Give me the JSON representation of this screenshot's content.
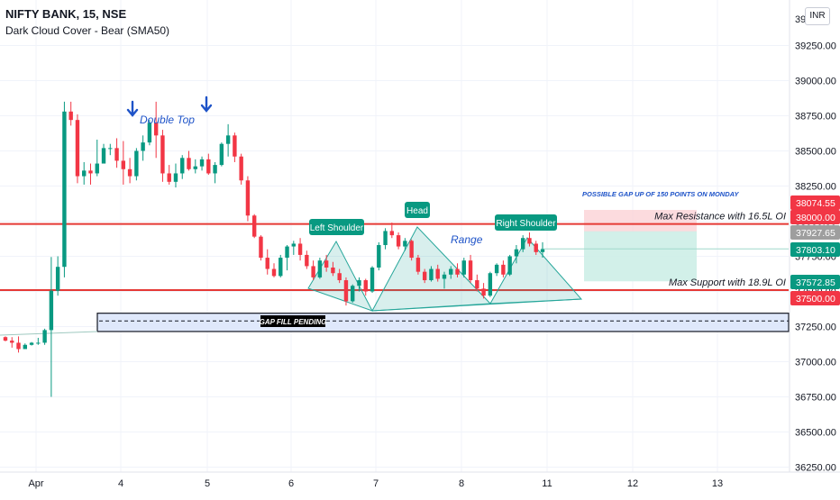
{
  "header": {
    "title": "NIFTY BANK, 15, NSE",
    "indicator": "Dark Cloud Cover - Bear (SMA50)",
    "currency": "INR"
  },
  "chart_data": {
    "type": "candlestick",
    "title": "NIFTY BANK, 15, NSE",
    "yaxis": {
      "ticks": [
        36250,
        36500,
        36750,
        37000,
        37250,
        37500,
        37750,
        38000,
        38250,
        38500,
        38750,
        39000,
        39250
      ],
      "top_partial_label": "39",
      "range": [
        36200,
        39550
      ],
      "side": "right"
    },
    "xaxis": {
      "labels": [
        "Apr",
        "4",
        "5",
        "6",
        "7",
        "8",
        "11",
        "12",
        "13"
      ]
    },
    "grid": true,
    "colors": {
      "up": "#089981",
      "down": "#f23645",
      "level": "#e53935",
      "gap_band": "#dfe8fb",
      "annotation": "#1e53c8",
      "pattern": "#26a69a"
    },
    "price_tags": [
      {
        "value": 38074.55,
        "label": "38074.55",
        "color": "#f23645"
      },
      {
        "value": 38000.0,
        "label": "38000.00",
        "color": "#f23645"
      },
      {
        "value": 37927.65,
        "label": "37927.65",
        "color": "#9e9e9e"
      },
      {
        "value": 37803.1,
        "label": "37803.10",
        "color": "#089981"
      },
      {
        "value": 37572.85,
        "label": "37572.85",
        "color": "#089981"
      },
      {
        "value": 37500.0,
        "label": "37500.00",
        "color": "#f23645"
      }
    ],
    "levels": [
      {
        "value": 37980,
        "label": "Max Resistance with 16.5L OI"
      },
      {
        "value": 37510,
        "label": "Max Support with 18.9L OI"
      }
    ],
    "gap_zone": {
      "low": 37215,
      "high": 37345,
      "mid": 37290,
      "label": "GAP FILL PENDING"
    },
    "pattern_labels": [
      "Left Shoulder",
      "Head",
      "Right Shoulder"
    ],
    "annotations": [
      "Double Top",
      "Range",
      "POSSIBLE GAP UP OF 150 POINTS ON MONDAY"
    ],
    "candles": [
      [
        37175,
        37180,
        37145,
        37150
      ],
      [
        37150,
        37175,
        37100,
        37135
      ],
      [
        37135,
        37180,
        37065,
        37090
      ],
      [
        37090,
        37130,
        37100,
        37120
      ],
      [
        37120,
        37140,
        37115,
        37135
      ],
      [
        37135,
        37170,
        37120,
        37135
      ],
      [
        37135,
        37235,
        37120,
        37225
      ],
      [
        37225,
        37745,
        36750,
        37505
      ],
      [
        37505,
        37750,
        37470,
        37675
      ],
      [
        37675,
        38850,
        37600,
        38780
      ],
      [
        38780,
        38850,
        38680,
        38720
      ],
      [
        38720,
        38760,
        38270,
        38320
      ],
      [
        38320,
        38420,
        38260,
        38360
      ],
      [
        38360,
        38410,
        38260,
        38340
      ],
      [
        38340,
        38580,
        38320,
        38410
      ],
      [
        38410,
        38550,
        38420,
        38520
      ],
      [
        38520,
        38550,
        38470,
        38520
      ],
      [
        38520,
        38590,
        38380,
        38430
      ],
      [
        38430,
        38570,
        38260,
        38370
      ],
      [
        38370,
        38450,
        38270,
        38320
      ],
      [
        38320,
        38520,
        38290,
        38500
      ],
      [
        38500,
        38610,
        38430,
        38560
      ],
      [
        38560,
        38720,
        38540,
        38700
      ],
      [
        38700,
        38850,
        38450,
        38610
      ],
      [
        38610,
        38650,
        38280,
        38340
      ],
      [
        38340,
        38400,
        38260,
        38280
      ],
      [
        38280,
        38410,
        38240,
        38340
      ],
      [
        38340,
        38470,
        38300,
        38450
      ],
      [
        38450,
        38500,
        38360,
        38370
      ],
      [
        38370,
        38440,
        38340,
        38390
      ],
      [
        38390,
        38460,
        38360,
        38440
      ],
      [
        38440,
        38480,
        38330,
        38340
      ],
      [
        38340,
        38420,
        38270,
        38400
      ],
      [
        38400,
        38560,
        38390,
        38550
      ],
      [
        38550,
        38690,
        38460,
        38610
      ],
      [
        38610,
        38630,
        38420,
        38460
      ],
      [
        38460,
        38480,
        38260,
        38290
      ],
      [
        38290,
        38320,
        38000,
        38040
      ],
      [
        38040,
        38050,
        37880,
        37890
      ],
      [
        37890,
        37900,
        37720,
        37740
      ],
      [
        37740,
        37800,
        37620,
        37660
      ],
      [
        37660,
        37700,
        37600,
        37610
      ],
      [
        37610,
        37760,
        37600,
        37740
      ],
      [
        37740,
        37830,
        37650,
        37820
      ],
      [
        37820,
        37860,
        37760,
        37840
      ],
      [
        37840,
        37880,
        37720,
        37760
      ],
      [
        37760,
        37790,
        37660,
        37680
      ],
      [
        37680,
        37720,
        37580,
        37600
      ],
      [
        37600,
        37740,
        37590,
        37720
      ],
      [
        37720,
        37760,
        37640,
        37670
      ],
      [
        37670,
        37710,
        37610,
        37630
      ],
      [
        37630,
        37660,
        37560,
        37580
      ],
      [
        37580,
        37600,
        37400,
        37430
      ],
      [
        37430,
        37550,
        37420,
        37540
      ],
      [
        37540,
        37600,
        37500,
        37580
      ],
      [
        37580,
        37590,
        37470,
        37500
      ],
      [
        37500,
        37680,
        37490,
        37670
      ],
      [
        37670,
        37850,
        37650,
        37830
      ],
      [
        37830,
        37950,
        37800,
        37930
      ],
      [
        37930,
        37990,
        37880,
        37900
      ],
      [
        37900,
        37920,
        37800,
        37820
      ],
      [
        37820,
        37880,
        37790,
        37860
      ],
      [
        37860,
        37870,
        37720,
        37740
      ],
      [
        37740,
        37760,
        37620,
        37640
      ],
      [
        37640,
        37660,
        37560,
        37580
      ],
      [
        37580,
        37680,
        37570,
        37660
      ],
      [
        37660,
        37690,
        37570,
        37590
      ],
      [
        37590,
        37640,
        37520,
        37620
      ],
      [
        37620,
        37680,
        37590,
        37660
      ],
      [
        37660,
        37700,
        37600,
        37620
      ],
      [
        37620,
        37740,
        37600,
        37720
      ],
      [
        37720,
        37760,
        37560,
        37580
      ],
      [
        37580,
        37620,
        37500,
        37520
      ],
      [
        37520,
        37560,
        37450,
        37470
      ],
      [
        37470,
        37640,
        37460,
        37630
      ],
      [
        37630,
        37700,
        37610,
        37690
      ],
      [
        37690,
        37720,
        37600,
        37620
      ],
      [
        37620,
        37760,
        37610,
        37750
      ],
      [
        37750,
        37830,
        37700,
        37800
      ],
      [
        37800,
        37900,
        37780,
        37880
      ],
      [
        37880,
        37920,
        37820,
        37840
      ],
      [
        37840,
        37860,
        37760,
        37780
      ],
      [
        37780,
        37850,
        37740,
        37800
      ]
    ]
  }
}
